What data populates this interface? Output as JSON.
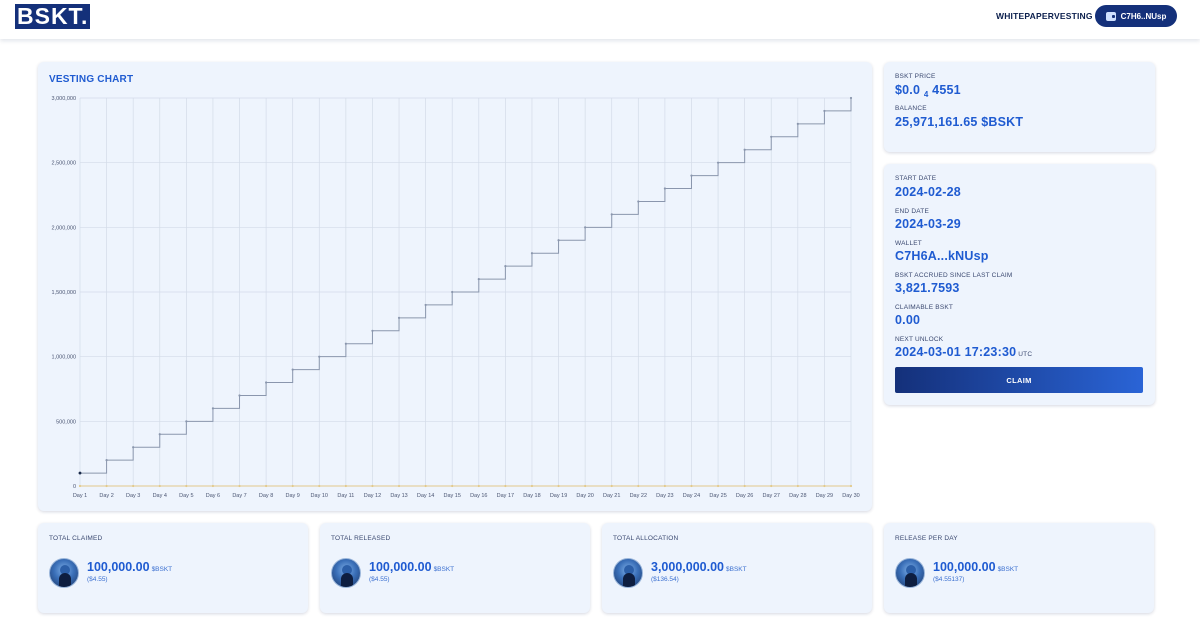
{
  "header": {
    "logo": "BSKT.",
    "nav": {
      "whitepaper": "WHITEPAPER",
      "vesting": "VESTING"
    },
    "wallet_button": "C7H6..NUsp"
  },
  "price_card": {
    "price_label": "BSKT PRICE",
    "price_prefix": "$0.0",
    "price_sub": "4",
    "price_suffix": "4551",
    "balance_label": "BALANCE",
    "balance_value": "25,971,161.65 $BSKT"
  },
  "info_card": {
    "start_label": "START DATE",
    "start_value": "2024-02-28",
    "end_label": "END DATE",
    "end_value": "2024-03-29",
    "wallet_label": "WALLET",
    "wallet_value": "C7H6A...kNUsp",
    "accrued_label": "BSKT ACCRUED SINCE LAST CLAIM",
    "accrued_value": "3,821.7593",
    "claimable_label": "CLAIMABLE BSKT",
    "claimable_value": "0.00",
    "unlock_label": "NEXT UNLOCK",
    "unlock_value": "2024-03-01 17:23:30",
    "unlock_tz": "UTC",
    "claim_button": "CLAIM"
  },
  "stats": [
    {
      "label": "TOTAL CLAIMED",
      "value": "100,000.00",
      "unit": "$BSKT",
      "usd": "($4.55)"
    },
    {
      "label": "TOTAL RELEASED",
      "value": "100,000.00",
      "unit": "$BSKT",
      "usd": "($4.55)"
    },
    {
      "label": "TOTAL ALLOCATION",
      "value": "3,000,000.00",
      "unit": "$BSKT",
      "usd": "($136.54)"
    },
    {
      "label": "RELEASE PER DAY",
      "value": "100,000.00",
      "unit": "$BSKT",
      "usd": "($4.55137)"
    }
  ],
  "chart_title": "VESTING CHART",
  "chart_data": {
    "type": "line",
    "stepped": true,
    "categories": [
      "Day 1",
      "Day 2",
      "Day 3",
      "Day 4",
      "Day 5",
      "Day 6",
      "Day 7",
      "Day 8",
      "Day 9",
      "Day 10",
      "Day 11",
      "Day 12",
      "Day 13",
      "Day 14",
      "Day 15",
      "Day 16",
      "Day 17",
      "Day 18",
      "Day 19",
      "Day 20",
      "Day 21",
      "Day 22",
      "Day 23",
      "Day 24",
      "Day 25",
      "Day 26",
      "Day 27",
      "Day 28",
      "Day 29",
      "Day 30"
    ],
    "series": [
      {
        "values": [
          100000,
          200000,
          300000,
          400000,
          500000,
          600000,
          700000,
          800000,
          900000,
          1000000,
          1100000,
          1200000,
          1300000,
          1400000,
          1500000,
          1600000,
          1700000,
          1800000,
          1900000,
          2000000,
          2100000,
          2200000,
          2300000,
          2400000,
          2500000,
          2600000,
          2700000,
          2800000,
          2900000,
          3000000
        ],
        "color": "#8a96ad"
      },
      {
        "values": [
          0,
          0,
          0,
          0,
          0,
          0,
          0,
          0,
          0,
          0,
          0,
          0,
          0,
          0,
          0,
          0,
          0,
          0,
          0,
          0,
          0,
          0,
          0,
          0,
          0,
          0,
          0,
          0,
          0,
          0
        ],
        "color": "#e2c98a"
      }
    ],
    "yticks": [
      0,
      500000,
      1000000,
      1500000,
      2000000,
      2500000,
      3000000
    ],
    "ytick_labels": [
      "0",
      "500,000",
      "1,000,000",
      "1,500,000",
      "2,000,000",
      "2,500,000",
      "3,000,000"
    ],
    "ylim": [
      0,
      3000000
    ],
    "grid": true
  }
}
